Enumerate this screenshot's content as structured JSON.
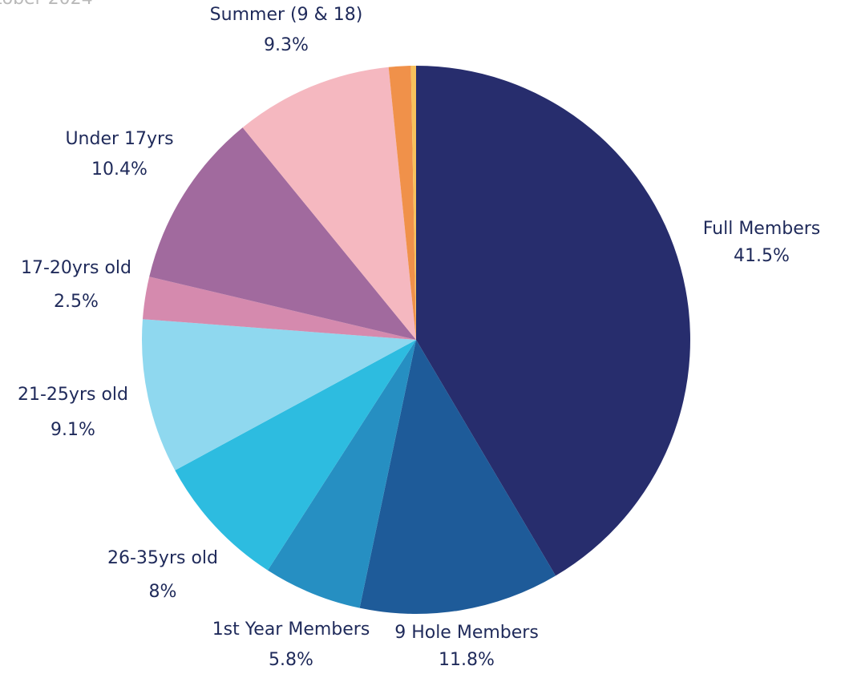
{
  "page": {
    "corner_title": "tober 2024"
  },
  "chart_data": {
    "type": "pie",
    "title": "",
    "slices": [
      {
        "label": "Full Members",
        "value": 41.5,
        "value_label": "41.5%",
        "color": "#272d6d"
      },
      {
        "label": "9 Hole Members",
        "value": 11.8,
        "value_label": "11.8%",
        "color": "#1e5b99"
      },
      {
        "label": "1st Year Members",
        "value": 5.8,
        "value_label": "5.8%",
        "color": "#268fc2"
      },
      {
        "label": "26-35yrs old",
        "value": 8,
        "value_label": "8%",
        "color": "#2dbce0"
      },
      {
        "label": "21-25yrs old",
        "value": 9.1,
        "value_label": "9.1%",
        "color": "#8fd8ef"
      },
      {
        "label": "17-20yrs old",
        "value": 2.5,
        "value_label": "2.5%",
        "color": "#d58aae"
      },
      {
        "label": "Under 17yrs",
        "value": 10.4,
        "value_label": "10.4%",
        "color": "#a16a9e"
      },
      {
        "label": "Summer (9 & 18)",
        "value": 9.3,
        "value_label": "9.3%",
        "color": "#f5b8c0"
      },
      {
        "label": "",
        "value": 1.3,
        "value_label": "",
        "color": "#f0914a"
      },
      {
        "label": "",
        "value": 0.3,
        "value_label": "",
        "color": "#f7c15c"
      }
    ]
  }
}
